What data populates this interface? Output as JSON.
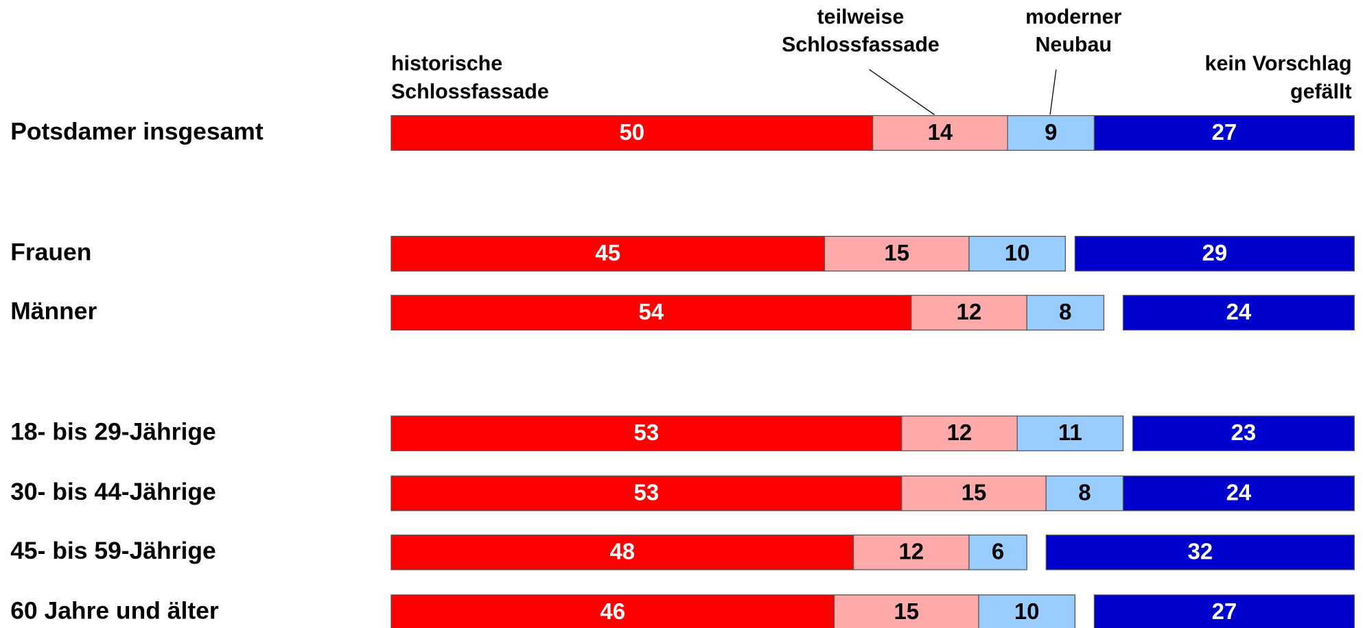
{
  "chart_data": {
    "type": "stacked-bar",
    "categories": [
      "Potsdamer insgesamt",
      "Frauen",
      "Männer",
      "18- bis 29-Jährige",
      "30- bis 44-Jährige",
      "45- bis 59-Jährige",
      "60 Jahre und älter"
    ],
    "xlim": [
      0,
      100
    ],
    "series": [
      {
        "name": "historische\nSchlossfassade",
        "color": "#ff0000",
        "values": [
          50,
          45,
          54,
          53,
          53,
          48,
          46
        ]
      },
      {
        "name": "teilweise\nSchlossfassade",
        "color": "#ffaaaa",
        "values": [
          14,
          15,
          12,
          12,
          15,
          12,
          15
        ]
      },
      {
        "name": "moderner\nNeubau",
        "color": "#99ccff",
        "values": [
          9,
          10,
          8,
          11,
          8,
          6,
          10
        ]
      },
      {
        "name": "kein Vorschlag\ngefällt",
        "color": "#0000cc",
        "values": [
          27,
          29,
          24,
          23,
          24,
          32,
          27
        ]
      }
    ]
  }
}
